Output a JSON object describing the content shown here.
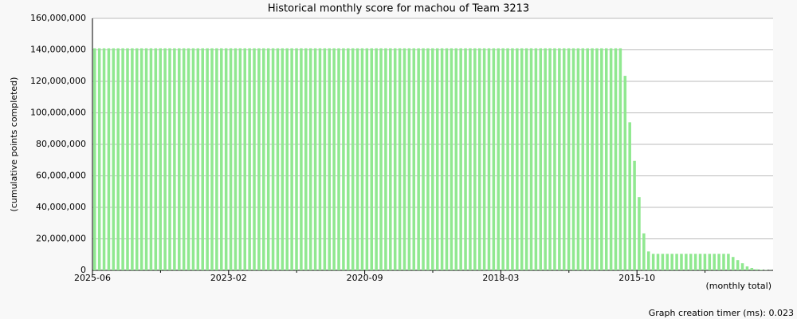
{
  "chart_data": {
    "type": "bar",
    "title": "Historical monthly score for machou of Team 3213",
    "y_label": "(cumulative points completed)",
    "x_note": "(monthly total)",
    "footer": "Graph creation timer (ms): 0.023",
    "color": "#90e890",
    "grid": true,
    "ylim": [
      0,
      160000000
    ],
    "yticks": [
      0,
      {
        "value": 20000000,
        "label": "20,000,000"
      },
      {
        "value": 40000000,
        "label": "40,000,000"
      },
      {
        "value": 60000000,
        "label": "60,000,000"
      },
      {
        "value": 80000000,
        "label": "80,000,000"
      },
      {
        "value": 100000000,
        "label": "100,000,000"
      },
      {
        "value": 120000000,
        "label": "120,000,000"
      },
      {
        "value": 140000000,
        "label": "140,000,000"
      },
      {
        "value": 160000000,
        "label": "160,000,000"
      }
    ],
    "categories": [
      "2025-06",
      null,
      null,
      null,
      null,
      null,
      null,
      null,
      null,
      null,
      null,
      null,
      null,
      null,
      null,
      null,
      null,
      null,
      null,
      null,
      null,
      null,
      null,
      null,
      null,
      null,
      null,
      null,
      null,
      "2023-02",
      null,
      null,
      null,
      null,
      null,
      null,
      null,
      null,
      null,
      null,
      null,
      null,
      null,
      null,
      null,
      null,
      null,
      null,
      null,
      null,
      null,
      null,
      null,
      null,
      null,
      null,
      null,
      null,
      "2020-09",
      null,
      null,
      null,
      null,
      null,
      null,
      null,
      null,
      null,
      null,
      null,
      null,
      null,
      null,
      null,
      null,
      null,
      null,
      null,
      null,
      null,
      null,
      null,
      null,
      null,
      null,
      null,
      null,
      "2018-03",
      null,
      null,
      null,
      null,
      null,
      null,
      null,
      null,
      null,
      null,
      null,
      null,
      null,
      null,
      null,
      null,
      null,
      null,
      null,
      null,
      null,
      null,
      null,
      null,
      null,
      null,
      null,
      null,
      "2015-10",
      null,
      null,
      null,
      null,
      null,
      null,
      null,
      null,
      null,
      null,
      null,
      null,
      null,
      null,
      null,
      null,
      null,
      null,
      null,
      null,
      null,
      null,
      null,
      null,
      null,
      null,
      null,
      null
    ],
    "values": [
      141000000,
      141000000,
      141000000,
      141000000,
      141000000,
      141000000,
      141000000,
      141000000,
      141000000,
      141000000,
      141000000,
      141000000,
      141000000,
      141000000,
      141000000,
      141000000,
      141000000,
      141000000,
      141000000,
      141000000,
      141000000,
      141000000,
      141000000,
      141000000,
      141000000,
      141000000,
      141000000,
      141000000,
      141000000,
      141000000,
      141000000,
      141000000,
      141000000,
      141000000,
      141000000,
      141000000,
      141000000,
      141000000,
      141000000,
      141000000,
      141000000,
      141000000,
      141000000,
      141000000,
      141000000,
      141000000,
      141000000,
      141000000,
      141000000,
      141000000,
      141000000,
      141000000,
      141000000,
      141000000,
      141000000,
      141000000,
      141000000,
      141000000,
      141000000,
      141000000,
      141000000,
      141000000,
      141000000,
      141000000,
      141000000,
      141000000,
      141000000,
      141000000,
      141000000,
      141000000,
      141000000,
      141000000,
      141000000,
      141000000,
      141000000,
      141000000,
      141000000,
      141000000,
      141000000,
      141000000,
      141000000,
      141000000,
      141000000,
      141000000,
      141000000,
      141000000,
      141000000,
      141000000,
      141000000,
      141000000,
      141000000,
      141000000,
      141000000,
      141000000,
      141000000,
      141000000,
      141000000,
      141000000,
      141000000,
      141000000,
      141000000,
      141000000,
      141000000,
      141000000,
      141000000,
      141000000,
      141000000,
      141000000,
      141000000,
      141000000,
      141000000,
      141000000,
      141000000,
      123500000,
      94000000,
      69500000,
      46500000,
      23500000,
      12000000,
      10500000,
      10500000,
      10500000,
      10500000,
      10500000,
      10500000,
      10500000,
      10500000,
      10500000,
      10500000,
      10500000,
      10500000,
      10500000,
      10500000,
      10500000,
      10500000,
      10500000,
      8500000,
      6500000,
      4500000,
      2500000,
      1500000,
      700000,
      400000,
      200000,
      100000
    ]
  }
}
